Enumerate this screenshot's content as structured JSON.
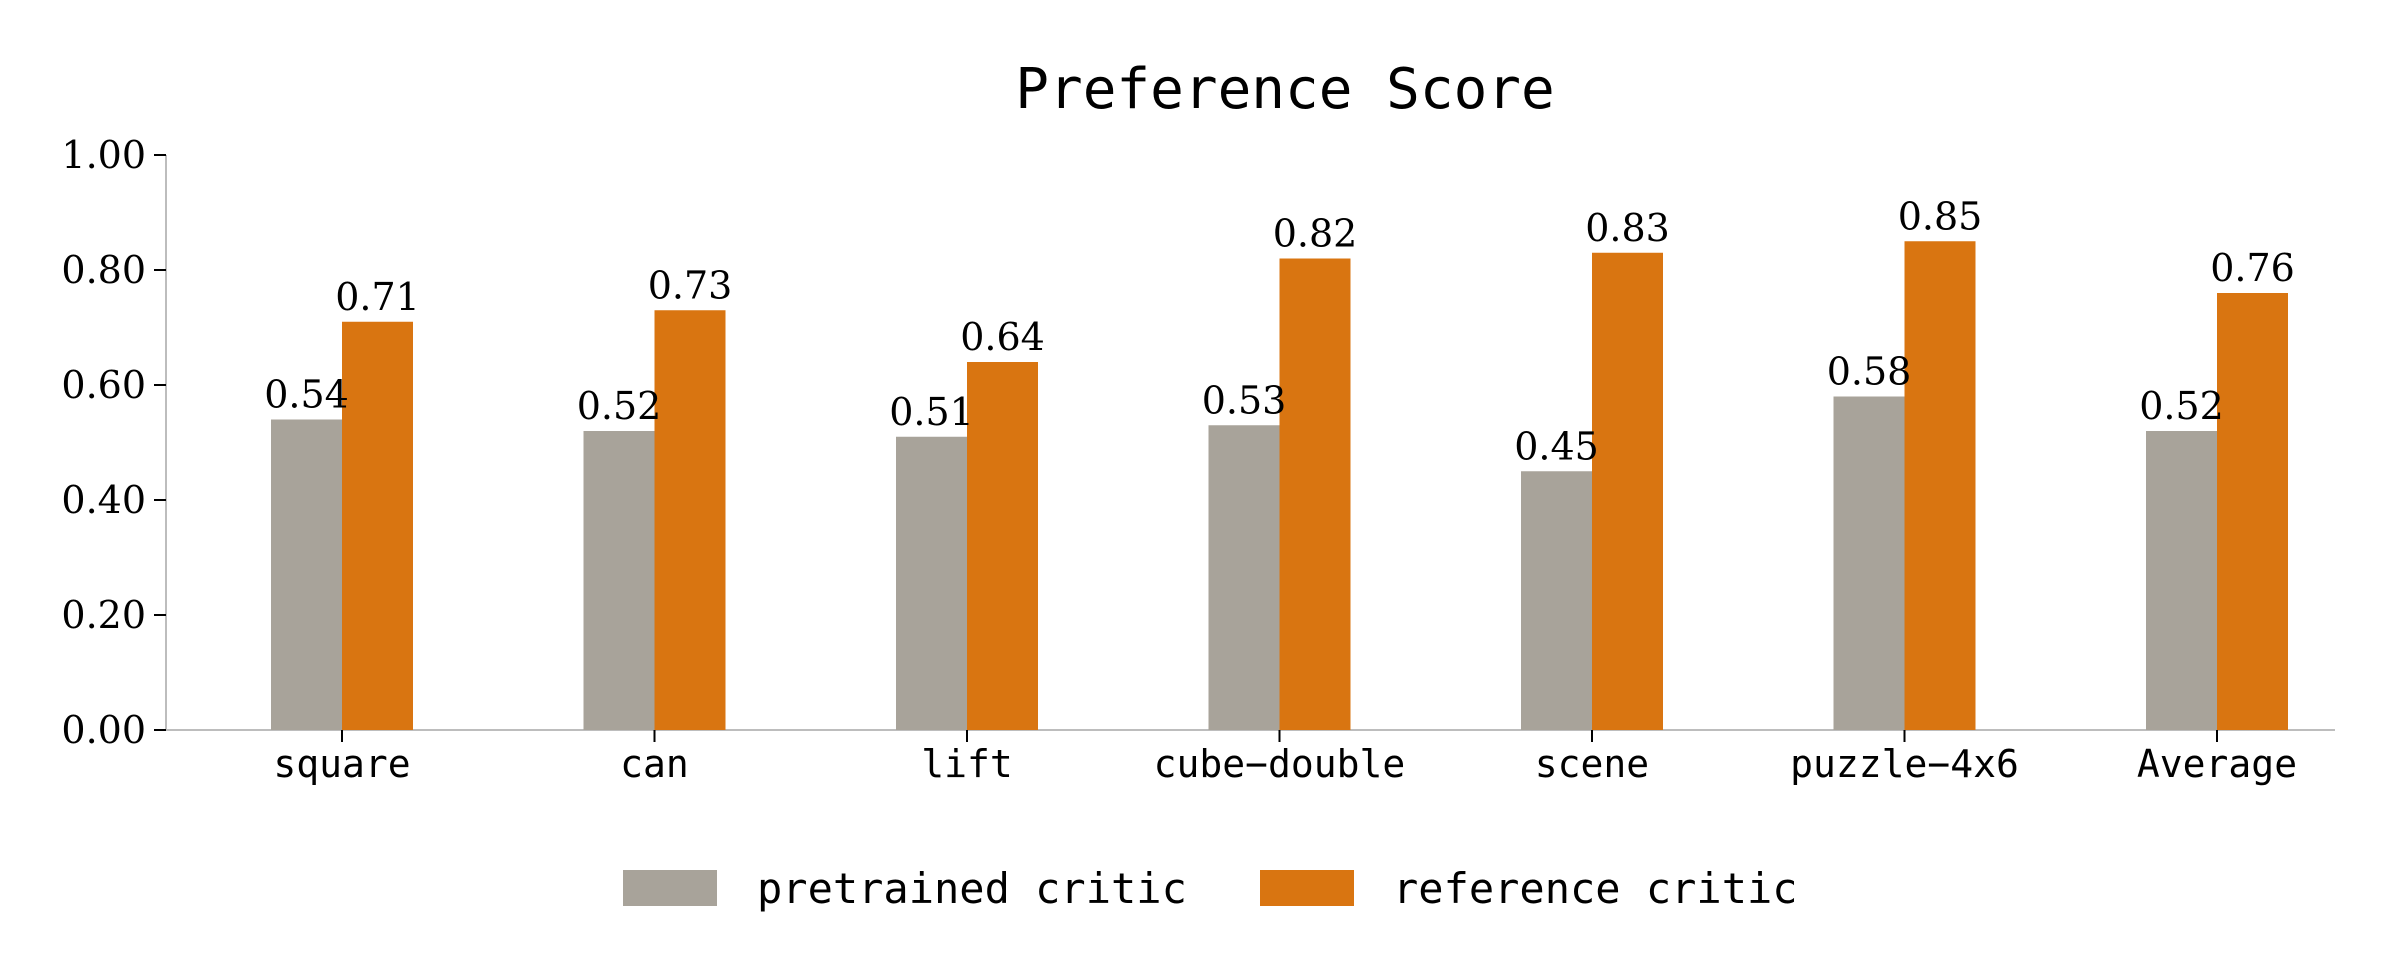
{
  "chart_data": {
    "type": "bar",
    "title": "Preference Score",
    "xlabel": "",
    "ylabel": "",
    "categories": [
      "square",
      "can",
      "lift",
      "cube−double",
      "scene",
      "puzzle−4x6",
      "Average"
    ],
    "series": [
      {
        "name": "pretrained critic",
        "color": "#a8a39a",
        "values": [
          0.54,
          0.52,
          0.51,
          0.53,
          0.45,
          0.58,
          0.52
        ]
      },
      {
        "name": "reference critic",
        "color": "#d97511",
        "values": [
          0.71,
          0.73,
          0.64,
          0.82,
          0.83,
          0.85,
          0.76
        ]
      }
    ],
    "ylim": [
      0,
      1.0
    ],
    "yticks": [
      0.0,
      0.2,
      0.4,
      0.6,
      0.8,
      1.0
    ],
    "ytick_labels": [
      "0.00",
      "0.20",
      "0.40",
      "0.60",
      "0.80",
      "1.00"
    ],
    "data_labels": [
      [
        "0.54",
        "0.52",
        "0.51",
        "0.53",
        "0.45",
        "0.58",
        "0.52"
      ],
      [
        "0.71",
        "0.73",
        "0.64",
        "0.82",
        "0.83",
        "0.85",
        "0.76"
      ]
    ],
    "grid": false,
    "legend_position": "bottom-center"
  }
}
